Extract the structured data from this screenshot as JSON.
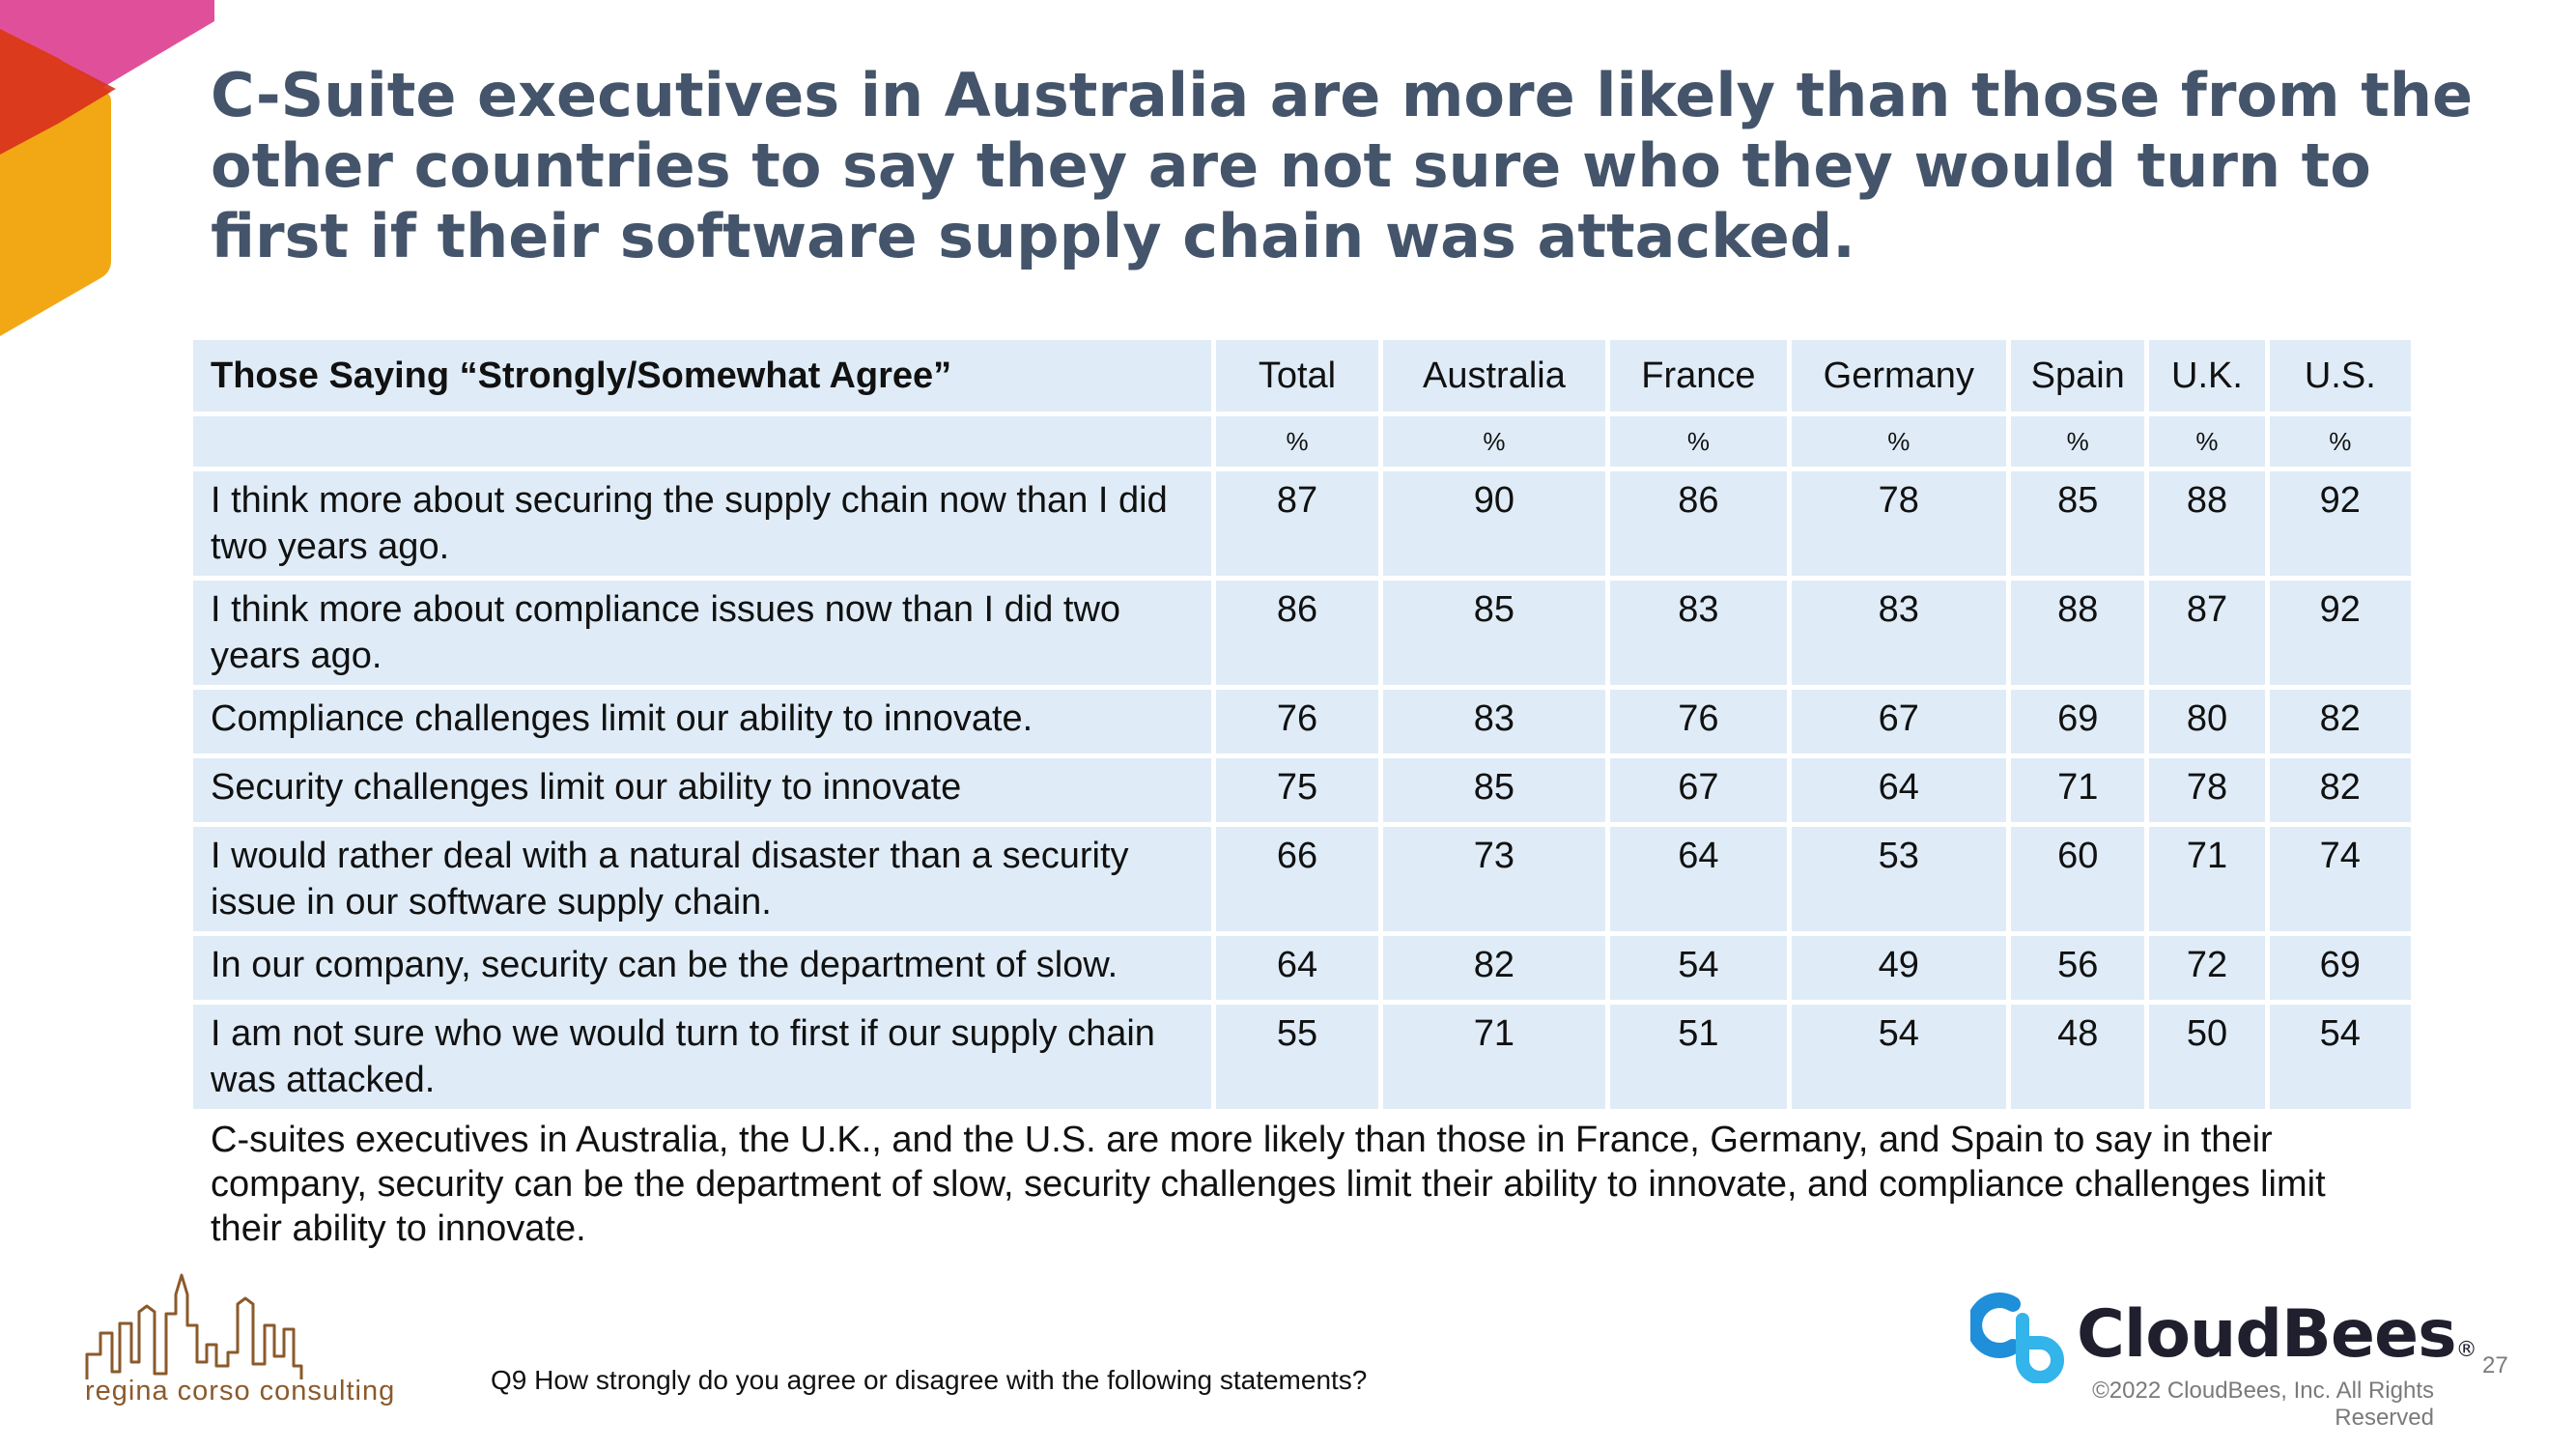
{
  "title": "C-Suite executives in Australia are more likely than those from the other countries to say they are not sure who they would turn to first if their software supply chain was attacked.",
  "table": {
    "row_header": "Those Saying “Strongly/Somewhat Agree”",
    "columns": [
      "Total",
      "Australia",
      "France",
      "Germany",
      "Spain",
      "U.K.",
      "U.S."
    ],
    "unit_row": [
      "%",
      "%",
      "%",
      "%",
      "%",
      "%",
      "%"
    ],
    "rows": [
      {
        "statement": "I think more about securing the supply chain now than I did two years ago.",
        "values": [
          "87",
          "90",
          "86",
          "78",
          "85",
          "88",
          "92"
        ]
      },
      {
        "statement": "I think more about compliance issues now than I did two years ago.",
        "values": [
          "86",
          "85",
          "83",
          "83",
          "88",
          "87",
          "92"
        ]
      },
      {
        "statement": "Compliance challenges limit our ability to innovate.",
        "values": [
          "76",
          "83",
          "76",
          "67",
          "69",
          "80",
          "82"
        ]
      },
      {
        "statement": "Security challenges limit our ability to innovate",
        "values": [
          "75",
          "85",
          "67",
          "64",
          "71",
          "78",
          "82"
        ]
      },
      {
        "statement": "I would rather deal with a natural disaster than a security issue in our software supply chain.",
        "values": [
          "66",
          "73",
          "64",
          "53",
          "60",
          "71",
          "74"
        ]
      },
      {
        "statement": "In our company, security can be the department of slow.",
        "values": [
          "64",
          "82",
          "54",
          "49",
          "56",
          "72",
          "69"
        ]
      },
      {
        "statement": "I am not sure who we would turn to first if our supply chain was attacked.",
        "values": [
          "55",
          "71",
          "51",
          "54",
          "48",
          "50",
          "54"
        ]
      }
    ]
  },
  "summary": "C-suites executives in Australia, the U.K., and the U.S. are more likely than those in France, Germany, and Spain to say in their company, security can be the department of slow, security challenges limit their ability to innovate, and compliance challenges limit their ability to innovate.",
  "question": "Q9 How strongly do you agree or disagree with the following statements?",
  "footer": {
    "consultant_logo_text": "regina corso consulting",
    "brand_name": "CloudBees",
    "brand_mark": "®",
    "copyright": "©2022 CloudBees, Inc. All Rights Reserved",
    "page_number": "27"
  },
  "colors": {
    "title": "#44546a",
    "table_fill": "#dfecf7",
    "deco_pink": "#e0509a",
    "deco_red": "#d8321c",
    "deco_yellow": "#f2a814",
    "brand_blue": "#1e8fd8"
  }
}
